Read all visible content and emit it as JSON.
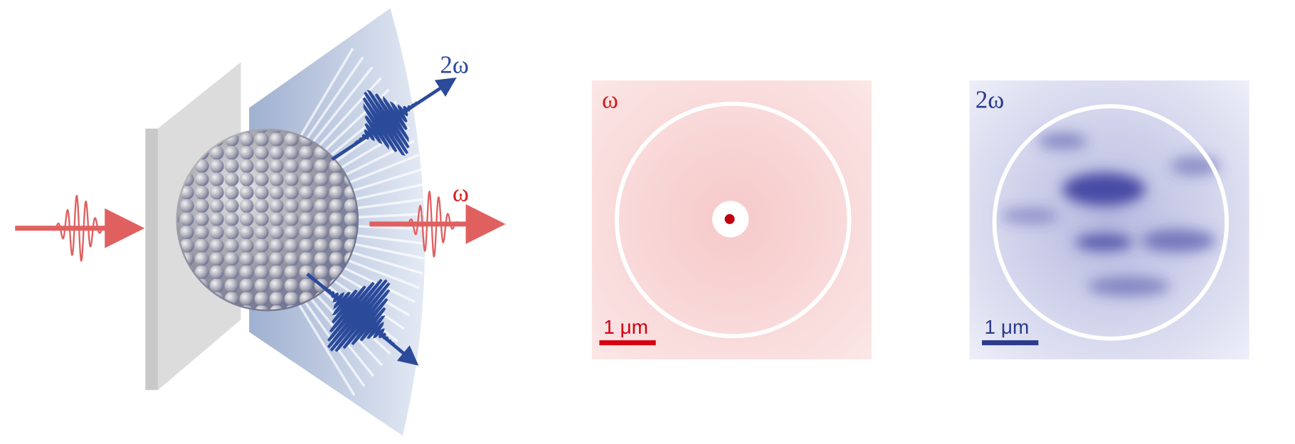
{
  "diagram": {
    "labels": {
      "second_harmonic": "2ω",
      "fundamental": "ω"
    }
  },
  "panels": [
    {
      "label": "ω",
      "scale_bar": "1 μm"
    },
    {
      "label": "2ω",
      "scale_bar": "1 μm"
    }
  ]
}
